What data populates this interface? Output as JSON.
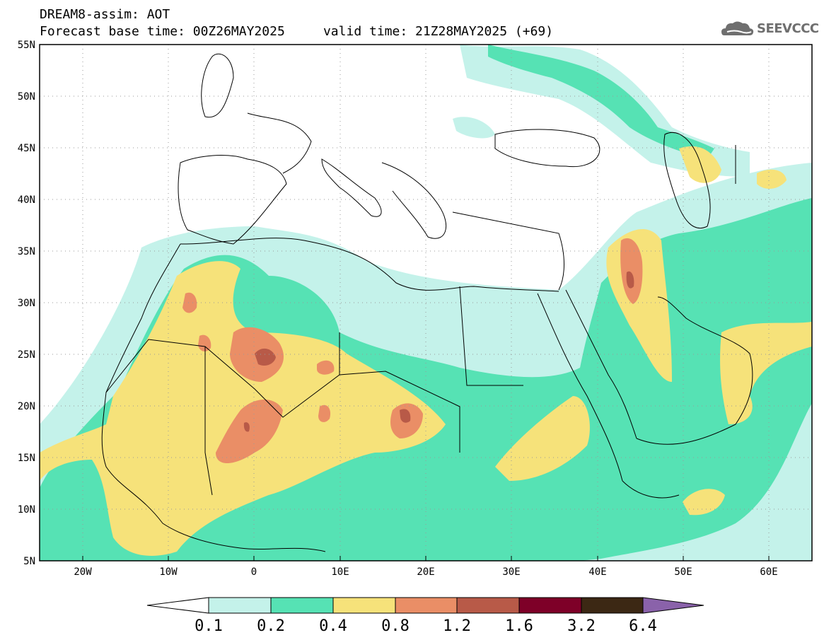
{
  "header": {
    "title": "DREAM8-assim: AOT",
    "base_time_label": "Forecast base time: 00Z26MAY2025",
    "valid_time_label": "valid time: 21Z28MAY2025 (+69)"
  },
  "logo": {
    "text": "SEEVCCC",
    "icon": "cloud-icon"
  },
  "map": {
    "lon_range": [
      -25,
      65
    ],
    "lat_range": [
      5,
      55
    ],
    "lat_ticks": [
      "5N",
      "10N",
      "15N",
      "20N",
      "25N",
      "30N",
      "35N",
      "40N",
      "45N",
      "50N",
      "55N"
    ],
    "lon_ticks": [
      "20W",
      "10W",
      "0",
      "10E",
      "20E",
      "30E",
      "40E",
      "50E",
      "60E"
    ],
    "colors": {
      "frame": "#000000",
      "coast": "#000000",
      "grid": "#9a9a9a"
    }
  },
  "colorbar": {
    "labels": [
      "0.1",
      "0.2",
      "0.4",
      "0.8",
      "1.2",
      "1.6",
      "3.2",
      "6.4"
    ],
    "colors": [
      "#c4f2ea",
      "#56e2b4",
      "#f6e27a",
      "#ea8e66",
      "#b85a48",
      "#7e0028",
      "#3c2814",
      "#8a62aa"
    ],
    "under_color": "#ffffff"
  }
}
